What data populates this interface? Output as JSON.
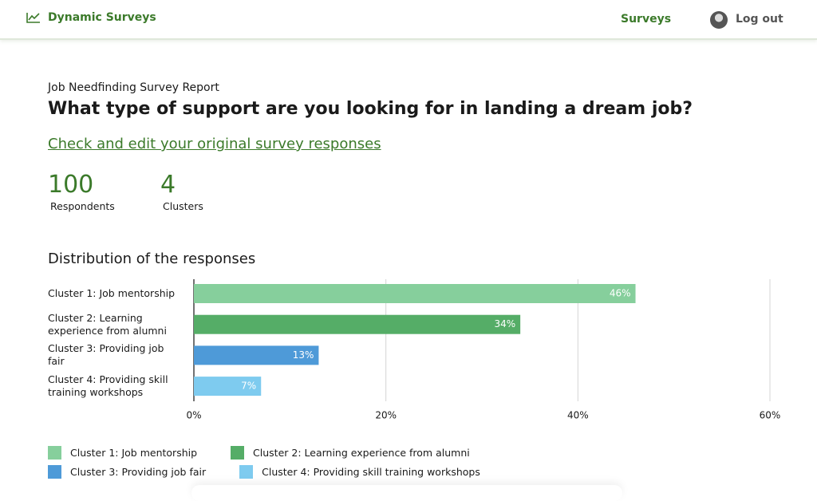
{
  "header": {
    "brand": "Dynamic Surveys",
    "nav": "Surveys",
    "logout": "Log out"
  },
  "report": {
    "subtitle": "Job Needfinding Survey Report",
    "question": "What type of support are you looking for in landing a dream job?",
    "link": "Check and edit your original survey responses",
    "stats": [
      {
        "value": 100,
        "label": "Respondents"
      },
      {
        "value": 4,
        "label": "Clusters"
      }
    ]
  },
  "chart_data": {
    "type": "bar",
    "orientation": "horizontal",
    "title": "Distribution of the responses",
    "categories": [
      "Cluster 1: Job mentorship",
      "Cluster 2: Learning experience from alumni",
      "Cluster 3: Providing job fair",
      "Cluster 4: Providing skill training workshops"
    ],
    "values": [
      46,
      34,
      13,
      7
    ],
    "value_labels": [
      "46%",
      "34%",
      "13%",
      "7%"
    ],
    "colors": [
      "#86cf9c",
      "#55ad67",
      "#4e9ad8",
      "#7ecbef"
    ],
    "xlim": [
      0,
      60
    ],
    "xticks": [
      {
        "value": 0,
        "label": "0%"
      },
      {
        "value": 20,
        "label": "20%"
      },
      {
        "value": 40,
        "label": "40%"
      },
      {
        "value": 60,
        "label": "60%"
      }
    ],
    "grid": true,
    "legend": "bottom"
  }
}
